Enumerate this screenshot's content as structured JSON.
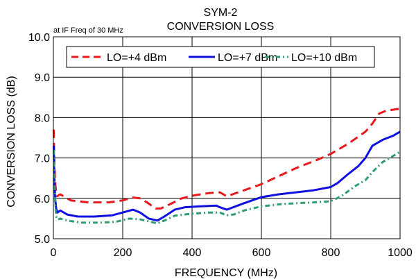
{
  "chart_data": {
    "type": "line",
    "title": "SYM-2",
    "subtitle": "CONVERSION LOSS",
    "annotation": "at IF Freq of 30 MHz",
    "xlabel": "FREQUENCY (MHz)",
    "ylabel": "CONVERSION LOSS (dB)",
    "xlim": [
      0,
      1000
    ],
    "ylim": [
      5.0,
      10.0
    ],
    "x_ticks": [
      "0",
      "200",
      "400",
      "600",
      "800",
      "1000"
    ],
    "y_ticks": [
      "5.0",
      "6.0",
      "7.0",
      "8.0",
      "9.0",
      "10.0"
    ],
    "grid": true,
    "legend_position": "top",
    "series": [
      {
        "name": "LO=+4 dBm",
        "color": "#e8191a",
        "style": "dashed",
        "points": [
          [
            1,
            7.7
          ],
          [
            3,
            6.8
          ],
          [
            6,
            6.3
          ],
          [
            10,
            6.05
          ],
          [
            20,
            6.1
          ],
          [
            30,
            6.05
          ],
          [
            50,
            5.95
          ],
          [
            100,
            5.9
          ],
          [
            160,
            5.9
          ],
          [
            200,
            5.95
          ],
          [
            230,
            6.02
          ],
          [
            250,
            6.0
          ],
          [
            270,
            5.9
          ],
          [
            295,
            5.75
          ],
          [
            310,
            5.75
          ],
          [
            340,
            5.87
          ],
          [
            370,
            6.0
          ],
          [
            410,
            6.08
          ],
          [
            450,
            6.13
          ],
          [
            480,
            6.15
          ],
          [
            500,
            6.05
          ],
          [
            550,
            6.2
          ],
          [
            600,
            6.35
          ],
          [
            650,
            6.55
          ],
          [
            700,
            6.75
          ],
          [
            760,
            6.95
          ],
          [
            800,
            7.1
          ],
          [
            850,
            7.35
          ],
          [
            900,
            7.65
          ],
          [
            920,
            7.85
          ],
          [
            940,
            8.1
          ],
          [
            960,
            8.17
          ],
          [
            1000,
            8.22
          ]
        ]
      },
      {
        "name": "LO=+7 dBm",
        "color": "#1010e0",
        "style": "solid",
        "points": [
          [
            1,
            7.3
          ],
          [
            3,
            6.5
          ],
          [
            5,
            6.0
          ],
          [
            8,
            5.75
          ],
          [
            12,
            5.65
          ],
          [
            20,
            5.7
          ],
          [
            40,
            5.6
          ],
          [
            70,
            5.55
          ],
          [
            120,
            5.55
          ],
          [
            170,
            5.58
          ],
          [
            200,
            5.65
          ],
          [
            230,
            5.72
          ],
          [
            250,
            5.65
          ],
          [
            275,
            5.5
          ],
          [
            300,
            5.45
          ],
          [
            320,
            5.55
          ],
          [
            350,
            5.72
          ],
          [
            380,
            5.78
          ],
          [
            420,
            5.8
          ],
          [
            470,
            5.82
          ],
          [
            480,
            5.78
          ],
          [
            500,
            5.72
          ],
          [
            550,
            5.88
          ],
          [
            600,
            6.03
          ],
          [
            650,
            6.1
          ],
          [
            700,
            6.15
          ],
          [
            750,
            6.2
          ],
          [
            800,
            6.28
          ],
          [
            820,
            6.38
          ],
          [
            850,
            6.6
          ],
          [
            880,
            6.8
          ],
          [
            900,
            7.0
          ],
          [
            920,
            7.3
          ],
          [
            950,
            7.45
          ],
          [
            980,
            7.55
          ],
          [
            1000,
            7.65
          ]
        ]
      },
      {
        "name": "LO=+10 dBm",
        "color": "#2e9e6e",
        "style": "dash-dot",
        "points": [
          [
            1,
            7.2
          ],
          [
            3,
            6.4
          ],
          [
            5,
            5.9
          ],
          [
            8,
            5.55
          ],
          [
            12,
            5.47
          ],
          [
            20,
            5.5
          ],
          [
            40,
            5.45
          ],
          [
            80,
            5.4
          ],
          [
            140,
            5.4
          ],
          [
            180,
            5.42
          ],
          [
            220,
            5.5
          ],
          [
            250,
            5.48
          ],
          [
            275,
            5.43
          ],
          [
            300,
            5.38
          ],
          [
            320,
            5.45
          ],
          [
            350,
            5.57
          ],
          [
            400,
            5.62
          ],
          [
            450,
            5.65
          ],
          [
            480,
            5.65
          ],
          [
            500,
            5.58
          ],
          [
            520,
            5.6
          ],
          [
            550,
            5.7
          ],
          [
            600,
            5.8
          ],
          [
            650,
            5.85
          ],
          [
            700,
            5.88
          ],
          [
            750,
            5.9
          ],
          [
            800,
            5.93
          ],
          [
            830,
            6.05
          ],
          [
            870,
            6.3
          ],
          [
            900,
            6.45
          ],
          [
            920,
            6.65
          ],
          [
            950,
            6.9
          ],
          [
            1000,
            7.15
          ]
        ]
      }
    ]
  }
}
